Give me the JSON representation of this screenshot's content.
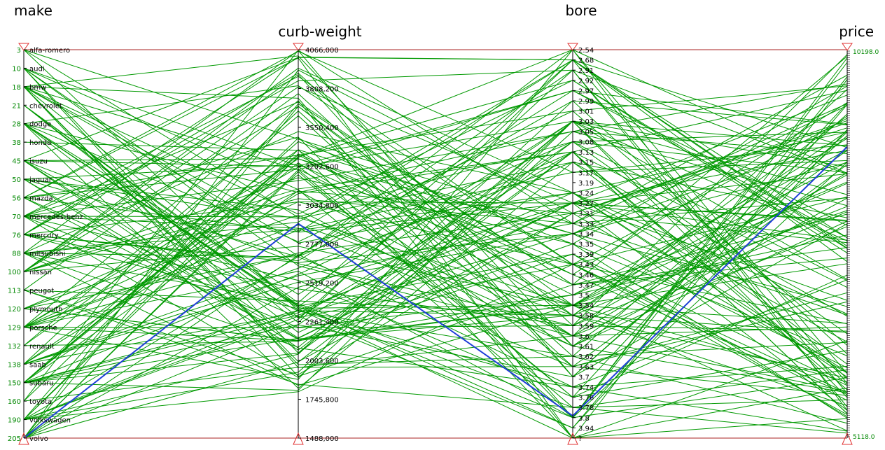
{
  "chart_data": {
    "type": "parallel-coordinates",
    "axes": [
      {
        "name": "make",
        "kind": "categorical",
        "categories": [
          "alfa-romero",
          "audi",
          "bmw",
          "chevrolet",
          "dodge",
          "honda",
          "isuzu",
          "jaguar",
          "mazda",
          "mercedes-benz",
          "mercury",
          "mitsubishi",
          "nissan",
          "peugot",
          "plymouth",
          "porsche",
          "renault",
          "saab",
          "subaru",
          "toyota",
          "volkswagen",
          "volvo"
        ],
        "index_labels": [
          "3",
          "10",
          "18",
          "21",
          "28",
          "38",
          "45",
          "50",
          "56",
          "70",
          "76",
          "88",
          "100",
          "113",
          "120",
          "129",
          "132",
          "138",
          "150",
          "160",
          "190",
          "205"
        ]
      },
      {
        "name": "curb-weight",
        "kind": "numeric",
        "range": [
          1488,
          4066
        ],
        "ticks": [
          "4066,000",
          "3808,200",
          "3550,400",
          "3292,600",
          "3034,800",
          "2777,000",
          "2519,200",
          "2261,400",
          "2003,600",
          "1745,800",
          "1488,000"
        ]
      },
      {
        "name": "bore",
        "kind": "categorical",
        "categories": [
          "2.54",
          "2.68",
          "2.91",
          "2.92",
          "2.97",
          "2.99",
          "3.01",
          "3.03",
          "3.05",
          "3.08",
          "3.13",
          "3.15",
          "3.17",
          "3.19",
          "3.24",
          "3.27",
          "3.31",
          "3.33",
          "3.34",
          "3.35",
          "3.39",
          "3.43",
          "3.46",
          "3.47",
          "3.5",
          "3.54",
          "3.58",
          "3.59",
          "3.6",
          "3.61",
          "3.62",
          "3.63",
          "3.7",
          "3.74",
          "3.76",
          "3.78",
          "3.8",
          "3.94",
          "?"
        ]
      },
      {
        "name": "price",
        "kind": "categorical",
        "top_label": "10198.0",
        "bottom_label": "5118.0"
      }
    ],
    "highlighted": {
      "make": "volvo",
      "curb_weight": 2912,
      "bore": "3.78",
      "price_fraction": 0.25
    },
    "colors": {
      "lines": "#009900",
      "highlight": "#1f3fd8",
      "axis_frame": "#aa2222",
      "axis": "#000000",
      "labels": "#008800"
    }
  }
}
